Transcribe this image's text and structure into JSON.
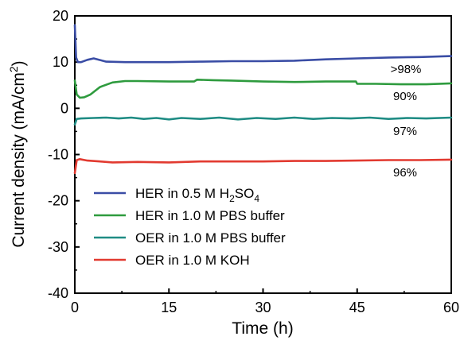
{
  "chart_data": {
    "type": "line",
    "title": "",
    "xlabel": "Time (h)",
    "ylabel": "Current density (mA/cm",
    "ylabel_sup": "2",
    "ylabel_close": ")",
    "xlim": [
      0,
      60
    ],
    "ylim": [
      -40,
      20
    ],
    "x_ticks": [
      "0",
      "15",
      "30",
      "45",
      "60"
    ],
    "y_ticks": [
      "20",
      "10",
      "0",
      "-10",
      "-20",
      "-30",
      "-40"
    ],
    "grid": false,
    "legend_position": "bottom-left",
    "series": [
      {
        "name": "HER in 0.5 M H2SO4",
        "name_parts": [
          "HER in 0.5 M H",
          "2",
          "SO",
          "4"
        ],
        "color": "#3A4DA5",
        "annotation": ">98%",
        "x": [
          0,
          0.2,
          0.5,
          1,
          2,
          3,
          5,
          8,
          10,
          15,
          20,
          25,
          30,
          35,
          40,
          45,
          50,
          55,
          60
        ],
        "y": [
          18,
          11,
          10,
          10,
          10.5,
          10.8,
          10.1,
          10,
          10,
          10,
          10.1,
          10.2,
          10.2,
          10.3,
          10.6,
          10.8,
          11,
          11.1,
          11.3
        ]
      },
      {
        "name": "HER in 1.0 M PBS buffer",
        "color": "#2E9B3E",
        "annotation": "90%",
        "x": [
          0,
          0.3,
          0.8,
          1.5,
          2.5,
          4,
          6,
          8,
          10,
          15,
          19,
          19.5,
          22,
          25,
          30,
          35,
          40,
          44.8,
          45,
          48,
          52,
          56,
          60
        ],
        "y": [
          6,
          3,
          2.3,
          2.4,
          3,
          4.6,
          5.6,
          5.9,
          5.9,
          5.8,
          5.8,
          6.2,
          6.1,
          6,
          5.8,
          5.7,
          5.8,
          5.8,
          5.3,
          5.3,
          5.2,
          5.2,
          5.4
        ]
      },
      {
        "name": "OER in 1.0 M PBS buffer",
        "color": "#1F8C84",
        "annotation": "97%",
        "x": [
          0,
          0.3,
          1,
          3,
          5,
          7,
          9,
          11,
          13,
          15,
          17,
          20,
          23,
          26,
          29,
          32,
          35,
          38,
          41,
          44,
          47,
          50,
          53,
          56,
          60
        ],
        "y": [
          -3.5,
          -2.3,
          -2.2,
          -2.1,
          -2,
          -2.2,
          -2,
          -2.3,
          -2.1,
          -2.4,
          -2.1,
          -2.3,
          -2,
          -2.4,
          -2.1,
          -2.3,
          -2,
          -2.3,
          -2.1,
          -2.2,
          -2,
          -2.3,
          -2.1,
          -2.2,
          -2
        ]
      },
      {
        "name": "OER in 1.0 M KOH",
        "color": "#E23A30",
        "annotation": "96%",
        "x": [
          0,
          0.3,
          0.8,
          2,
          4,
          6,
          10,
          15,
          20,
          25,
          30,
          35,
          40,
          45,
          50,
          55,
          60
        ],
        "y": [
          -14,
          -11.2,
          -11,
          -11.3,
          -11.5,
          -11.7,
          -11.6,
          -11.7,
          -11.5,
          -11.5,
          -11.5,
          -11.4,
          -11.4,
          -11.3,
          -11.2,
          -11.2,
          -11.1
        ]
      }
    ]
  }
}
